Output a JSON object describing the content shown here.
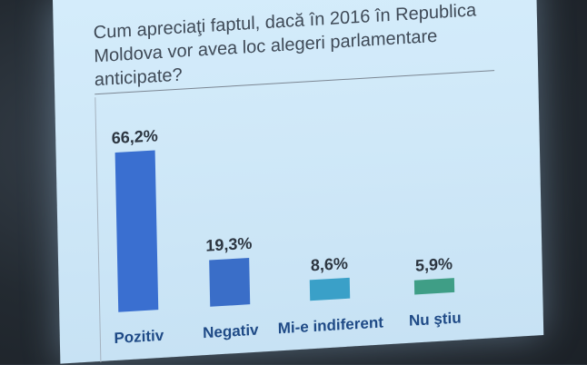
{
  "chart_data": {
    "type": "bar",
    "title": "Cum apreciaţi faptul, dacă în 2016 în Republica Moldova vor avea loc alegeri parlamentare anticipate?",
    "title_lines": [
      "Cum apreciaţi faptul, dacă în 2016 în Republica",
      "Moldova vor avea loc alegeri parlamentare",
      "anticipate?"
    ],
    "categories": [
      "Pozitiv",
      "Negativ",
      "Mi-e indiferent",
      "Nu ştiu"
    ],
    "values": [
      66.2,
      19.3,
      8.6,
      5.9
    ],
    "value_labels": [
      "66,2%",
      "19,3%",
      "8,6%",
      "5,9%"
    ],
    "colors": [
      "#3a6fd0",
      "#3a6ec8",
      "#3aa0c8",
      "#3f9e86"
    ],
    "ylim": [
      0,
      70
    ],
    "grid": false,
    "legend": "none"
  }
}
